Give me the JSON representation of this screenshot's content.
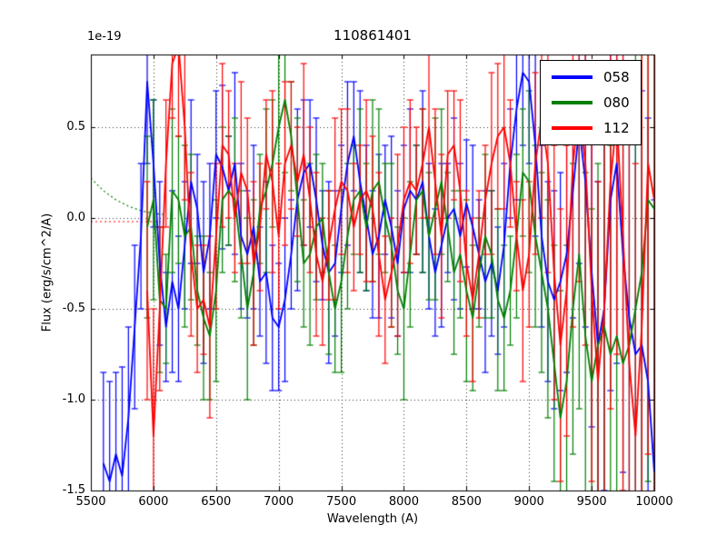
{
  "chart_data": {
    "type": "line",
    "title": "110861401",
    "xlabel": "Wavelength (A)",
    "ylabel": "Flux (erg/s/cm^2/A)",
    "offset_label": "1e-19",
    "xlim": [
      5500,
      10000
    ],
    "ylim": [
      -1.5,
      0.9
    ],
    "grid": true,
    "grid_style": "dotted",
    "x_ticks": {
      "values": [
        5500,
        6000,
        6500,
        7000,
        7500,
        8000,
        8500,
        9000,
        9500,
        10000
      ],
      "labels": [
        "5500",
        "6000",
        "6500",
        "7000",
        "7500",
        "8000",
        "8500",
        "9000",
        "9500",
        "10000"
      ]
    },
    "y_ticks": {
      "values": [
        0.5,
        0.0,
        -0.5,
        -1.0,
        -1.5
      ],
      "labels": [
        "0.5",
        "0.0",
        "-0.5",
        "-1.0",
        "-1.5"
      ]
    },
    "legend": {
      "position": "upper right",
      "entries": [
        {
          "label": "058",
          "color": "#0000ff"
        },
        {
          "label": "080",
          "color": "#008000"
        },
        {
          "label": "112",
          "color": "#ff0000"
        }
      ]
    },
    "reference_lines": [
      {
        "name": "red-zero-dotted",
        "color": "#ff0000",
        "style": "dotted",
        "x": [
          5500,
          6080
        ],
        "y": [
          -0.02,
          -0.02
        ]
      },
      {
        "name": "green-model-dotted",
        "color": "#008000",
        "style": "dotted",
        "x": [
          5500,
          5600,
          5700,
          5800,
          5900,
          6000,
          6080
        ],
        "y": [
          0.22,
          0.15,
          0.1,
          0.065,
          0.04,
          0.025,
          0.02
        ]
      }
    ],
    "series": [
      {
        "name": "058",
        "color": "#0000ff",
        "x_start": 5600,
        "x_step": 50,
        "values": [
          -1.35,
          -1.45,
          -1.3,
          -1.42,
          -1.1,
          -0.6,
          -0.1,
          0.75,
          0.3,
          -0.25,
          -0.6,
          -0.35,
          -0.5,
          -0.15,
          0.2,
          0.05,
          -0.3,
          -0.1,
          0.35,
          0.28,
          0.15,
          0.3,
          -0.1,
          -0.2,
          -0.05,
          -0.35,
          -0.3,
          -0.55,
          -0.6,
          -0.45,
          -0.2,
          0.1,
          0.25,
          0.3,
          0.1,
          -0.15,
          -0.3,
          -0.25,
          0.05,
          0.3,
          0.45,
          0.2,
          0.0,
          -0.2,
          -0.1,
          0.1,
          -0.05,
          -0.25,
          0.05,
          0.15,
          0.1,
          0.2,
          -0.1,
          -0.3,
          -0.15,
          0.0,
          0.05,
          -0.1,
          0.08,
          -0.05,
          -0.2,
          -0.35,
          -0.25,
          -0.4,
          -0.15,
          0.3,
          0.6,
          0.8,
          0.75,
          0.4,
          -0.1,
          -0.35,
          -0.45,
          -0.35,
          -0.2,
          0.15,
          0.5,
          0.2,
          -0.3,
          -0.7,
          -0.5,
          0.1,
          0.3,
          -0.2,
          -0.55,
          -0.75,
          -0.7,
          -0.9,
          -1.4
        ],
        "errors": [
          0.5,
          0.55,
          0.45,
          0.6,
          0.5,
          0.45,
          0.4,
          0.45,
          0.35,
          0.45,
          0.3,
          0.5,
          0.4,
          0.35,
          0.45,
          0.3,
          0.5,
          0.4,
          0.35,
          0.45,
          0.3,
          0.5,
          0.4,
          0.35,
          0.45,
          0.3,
          0.5,
          0.4,
          0.35,
          0.45,
          0.3,
          0.5,
          0.4,
          0.35,
          0.45,
          0.3,
          0.5,
          0.4,
          0.35,
          0.45,
          0.3,
          0.5,
          0.4,
          0.35,
          0.45,
          0.3,
          0.5,
          0.4,
          0.35,
          0.45,
          0.3,
          0.5,
          0.4,
          0.35,
          0.45,
          0.3,
          0.5,
          0.4,
          0.35,
          0.45,
          0.3,
          0.5,
          0.4,
          0.35,
          0.45,
          0.3,
          0.5,
          0.4,
          0.45,
          0.5,
          0.5,
          0.55,
          0.6,
          0.6,
          0.65,
          0.7,
          0.75,
          0.8,
          0.85,
          0.9,
          1.0,
          1.05,
          1.1,
          1.2,
          1.25,
          1.3,
          1.4,
          1.45,
          1.5
        ]
      },
      {
        "name": "080",
        "color": "#008000",
        "x_start": 5950,
        "x_step": 50,
        "values": [
          -0.05,
          0.1,
          -0.45,
          -0.5,
          0.15,
          0.1,
          -0.1,
          -0.05,
          -0.4,
          -0.55,
          -0.65,
          -0.4,
          0.1,
          0.15,
          0.1,
          -0.2,
          -0.5,
          -0.3,
          0.05,
          0.15,
          0.3,
          0.5,
          0.65,
          0.45,
          0.1,
          -0.25,
          -0.2,
          -0.05,
          0.0,
          -0.3,
          -0.5,
          -0.35,
          -0.1,
          0.1,
          0.15,
          -0.05,
          0.15,
          0.2,
          0.0,
          -0.15,
          -0.4,
          -0.5,
          -0.2,
          0.1,
          0.15,
          -0.1,
          0.05,
          0.2,
          -0.05,
          -0.3,
          -0.2,
          -0.4,
          -0.55,
          -0.3,
          -0.1,
          -0.2,
          -0.45,
          -0.55,
          -0.4,
          -0.1,
          0.25,
          0.2,
          -0.1,
          -0.3,
          -0.5,
          -0.8,
          -1.1,
          -0.9,
          -0.5,
          -0.2,
          -0.65,
          -0.9,
          -0.7,
          -0.6,
          -0.75,
          -0.65,
          -0.8,
          -0.7,
          -0.5,
          -0.3,
          0.1,
          0.05
        ],
        "errors": [
          0.5,
          0.55,
          0.4,
          0.3,
          0.45,
          0.35,
          0.5,
          0.4,
          0.3,
          0.45,
          0.35,
          0.5,
          0.4,
          0.3,
          0.45,
          0.35,
          0.5,
          0.4,
          0.3,
          0.45,
          0.35,
          0.5,
          0.4,
          0.3,
          0.45,
          0.35,
          0.5,
          0.4,
          0.3,
          0.45,
          0.35,
          0.5,
          0.4,
          0.3,
          0.45,
          0.35,
          0.5,
          0.4,
          0.3,
          0.45,
          0.35,
          0.5,
          0.4,
          0.3,
          0.45,
          0.35,
          0.5,
          0.4,
          0.3,
          0.45,
          0.35,
          0.5,
          0.4,
          0.3,
          0.45,
          0.35,
          0.5,
          0.4,
          0.3,
          0.45,
          0.35,
          0.5,
          0.5,
          0.55,
          0.6,
          0.65,
          0.7,
          0.75,
          0.8,
          0.85,
          0.9,
          0.95,
          1.0,
          1.1,
          1.15,
          1.2,
          1.3,
          1.35,
          1.4,
          1.5,
          1.55,
          1.6
        ]
      },
      {
        "name": "112",
        "color": "#ff0000",
        "x_start": 5950,
        "x_step": 50,
        "values": [
          -0.4,
          -1.2,
          -0.5,
          0.3,
          0.85,
          0.95,
          0.5,
          -0.2,
          -0.5,
          -0.45,
          -0.6,
          -0.1,
          0.4,
          0.35,
          0.0,
          0.25,
          0.15,
          -0.25,
          -0.05,
          0.35,
          0.2,
          -0.1,
          0.3,
          0.4,
          0.2,
          0.35,
          0.1,
          -0.2,
          -0.35,
          -0.15,
          0.05,
          0.2,
          0.15,
          -0.05,
          0.1,
          0.15,
          0.05,
          -0.2,
          -0.45,
          -0.3,
          -0.15,
          0.1,
          0.2,
          0.15,
          0.3,
          0.5,
          0.2,
          -0.1,
          0.35,
          0.4,
          0.15,
          -0.25,
          -0.45,
          -0.2,
          0.1,
          0.3,
          0.45,
          0.5,
          0.3,
          -0.1,
          -0.4,
          -0.2,
          0.3,
          0.55,
          0.3,
          -0.3,
          -0.7,
          -0.4,
          0.3,
          0.6,
          0.3,
          -0.4,
          -0.9,
          -0.5,
          0.2,
          0.55,
          -0.1,
          -0.8,
          -1.2,
          -0.6,
          0.3,
          0.1
        ],
        "errors": [
          0.6,
          0.7,
          0.45,
          0.35,
          0.3,
          0.5,
          0.4,
          0.45,
          0.35,
          0.3,
          0.5,
          0.4,
          0.45,
          0.35,
          0.3,
          0.5,
          0.4,
          0.45,
          0.35,
          0.3,
          0.5,
          0.4,
          0.45,
          0.35,
          0.3,
          0.5,
          0.4,
          0.45,
          0.35,
          0.3,
          0.5,
          0.4,
          0.45,
          0.35,
          0.3,
          0.5,
          0.4,
          0.45,
          0.35,
          0.3,
          0.5,
          0.4,
          0.45,
          0.35,
          0.3,
          0.5,
          0.4,
          0.45,
          0.35,
          0.3,
          0.5,
          0.4,
          0.45,
          0.35,
          0.3,
          0.5,
          0.4,
          0.45,
          0.35,
          0.3,
          0.5,
          0.4,
          0.5,
          0.55,
          0.6,
          0.7,
          0.75,
          0.8,
          0.9,
          0.95,
          1.0,
          1.05,
          1.1,
          1.2,
          1.25,
          1.3,
          1.4,
          1.45,
          1.5,
          1.55,
          1.6,
          1.7
        ]
      }
    ]
  }
}
